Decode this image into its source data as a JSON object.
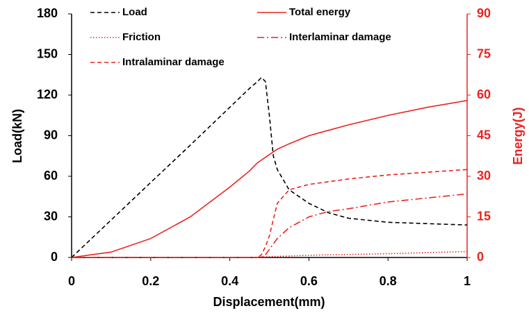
{
  "chart_data": {
    "type": "line",
    "xlabel": "Displacement(mm)",
    "ylabel": "Load(kN)",
    "y2label": "Energy(J)",
    "x": [
      0,
      0.1,
      0.2,
      0.3,
      0.4,
      0.45,
      0.47,
      0.48,
      0.49,
      0.5,
      0.51,
      0.52,
      0.55,
      0.6,
      0.65,
      0.7,
      0.8,
      0.9,
      1.0
    ],
    "series": [
      {
        "name": "Load",
        "color": "#000000",
        "dash": "dashed",
        "axis": "y",
        "values": [
          0,
          27.7,
          55.4,
          83,
          111,
          125,
          130,
          133,
          130,
          105,
          75,
          65,
          50,
          40,
          33,
          29,
          26,
          25,
          24
        ]
      },
      {
        "name": "Total energy",
        "color": "#e8231f",
        "dash": "solid",
        "axis": "y2",
        "values": [
          0,
          2,
          7,
          15,
          26,
          32,
          35,
          36,
          37,
          38,
          39,
          40,
          42,
          45,
          47,
          49,
          52.5,
          55.5,
          58
        ]
      },
      {
        "name": "Friction",
        "color": "#e8231f",
        "dash": "dotted",
        "axis": "y2",
        "values": [
          0,
          0,
          0,
          0,
          0,
          0,
          0.1,
          0.2,
          0.25,
          0.3,
          0.35,
          0.4,
          0.55,
          0.8,
          1,
          1.1,
          1.4,
          1.8,
          2.2
        ]
      },
      {
        "name": "Interlaminar damage",
        "color": "#e8231f",
        "dash": "dashdot",
        "axis": "y2",
        "values": [
          0,
          0,
          0,
          0,
          0,
          0,
          0,
          0,
          1,
          3,
          5,
          7,
          11,
          15,
          17,
          18,
          20.5,
          22,
          23.5
        ]
      },
      {
        "name": "Intralaminar damage",
        "color": "#e8231f",
        "dash": "dashed",
        "axis": "y2",
        "values": [
          0,
          0,
          0,
          0,
          0,
          0,
          0,
          1,
          4,
          8,
          14,
          20,
          25,
          27,
          28,
          29,
          30.5,
          31.5,
          32.5
        ]
      }
    ],
    "xlim": [
      0,
      1
    ],
    "xticks": [
      0,
      0.2,
      0.4,
      0.6,
      0.8,
      1
    ],
    "ylim": [
      0,
      180
    ],
    "yticks": [
      0,
      30,
      60,
      90,
      120,
      150,
      180
    ],
    "y2lim": [
      0,
      90
    ],
    "y2ticks": [
      0,
      15,
      30,
      45,
      60,
      75,
      90
    ],
    "y2color": "#e8231f"
  }
}
